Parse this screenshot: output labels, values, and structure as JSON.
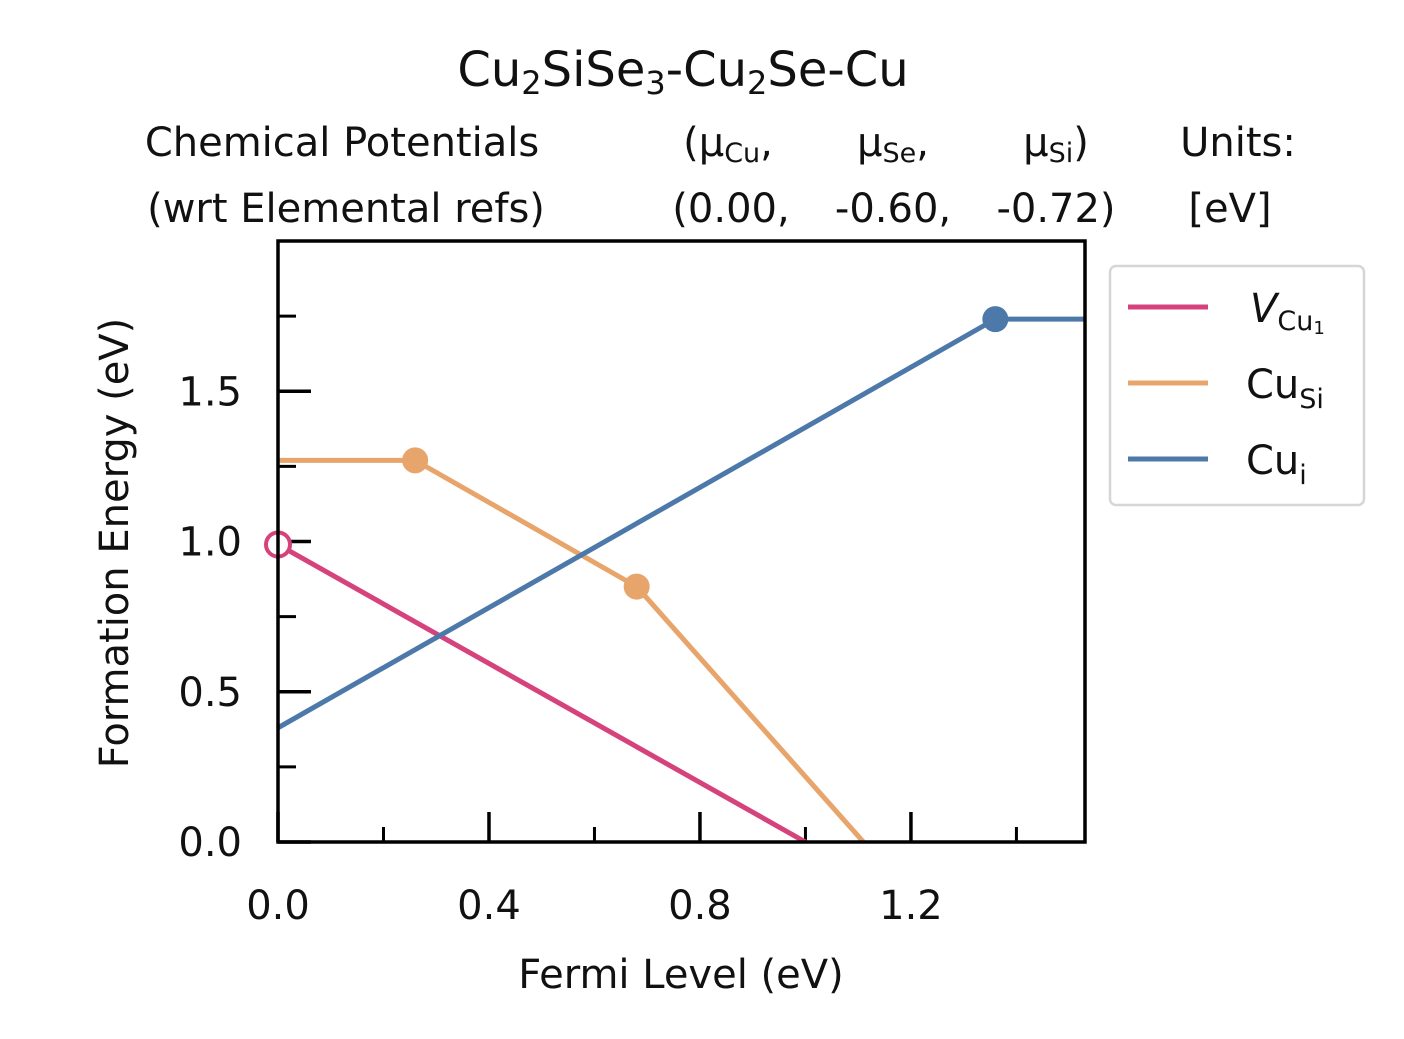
{
  "chart_data": {
    "type": "line",
    "title": {
      "prefix": "Cu",
      "sub1": "2",
      "mid1": "SiSe",
      "sub2": "3",
      "mid2": "-Cu",
      "sub3": "2",
      "suffix": "Se-Cu"
    },
    "header": {
      "row1_label": "Chemical Potentials",
      "row2_label": "(wrt Elemental refs)",
      "mu_symbol": "μ",
      "col1_sub": "Cu",
      "col2_sub": "Se",
      "col3_sub": "Si",
      "open_paren": "(",
      "close_paren": ")",
      "comma": ",",
      "col1_value": "(0.00,",
      "col2_value": "-0.60,",
      "col3_value": "-0.72)",
      "units_label": "Units:",
      "units_value": "[eV]"
    },
    "xlabel": "Fermi Level (eV)",
    "ylabel": "Formation Energy (eV)",
    "xlim": [
      0.0,
      1.53
    ],
    "ylim": [
      0.0,
      2.0
    ],
    "xticks_major": [
      0.0,
      0.4,
      0.8,
      1.2
    ],
    "xtick_labels": [
      "0.0",
      "0.4",
      "0.8",
      "1.2"
    ],
    "xticks_minor": [
      0.2,
      0.6,
      1.0,
      1.4
    ],
    "yticks_major": [
      0.0,
      0.5,
      1.0,
      1.5
    ],
    "ytick_labels": [
      "0.0",
      "0.5",
      "1.0",
      "1.5"
    ],
    "yticks_minor": [
      0.25,
      0.75,
      1.25,
      1.75
    ],
    "grid": false,
    "legend_position": "outside-right",
    "series": [
      {
        "label_main": "V",
        "label_sub": "Cu",
        "label_subsub": "1",
        "italic": true,
        "color": "#d5427c",
        "x": [
          0.0,
          1.0
        ],
        "y": [
          0.99,
          0.0
        ],
        "markers": [
          {
            "x": 0.0,
            "y": 0.99,
            "hollow": true
          }
        ]
      },
      {
        "label_main": "Cu",
        "label_sub": "Si",
        "italic": false,
        "color": "#e8a56b",
        "x": [
          0.0,
          0.26,
          0.68,
          1.11
        ],
        "y": [
          1.27,
          1.27,
          0.85,
          0.0
        ],
        "markers": [
          {
            "x": 0.26,
            "y": 1.27,
            "hollow": false
          },
          {
            "x": 0.68,
            "y": 0.85,
            "hollow": false
          }
        ]
      },
      {
        "label_main": "Cu",
        "label_sub": "i",
        "italic": false,
        "color": "#4d79aa",
        "x": [
          0.0,
          1.36,
          1.53
        ],
        "y": [
          0.38,
          1.74,
          1.74
        ],
        "markers": [
          {
            "x": 1.36,
            "y": 1.74,
            "hollow": false
          }
        ]
      }
    ]
  }
}
